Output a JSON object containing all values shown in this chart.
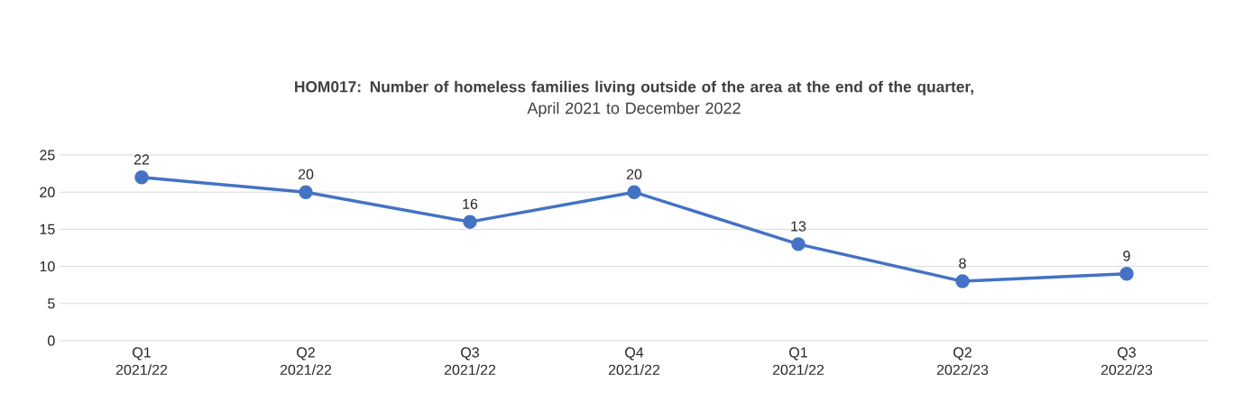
{
  "chart_data": {
    "type": "line",
    "title": "HOM017: Number of homeless families living outside of the area at the end of the quarter,",
    "subtitle": "April 2021 to December 2022",
    "categories": [
      "Q1 2021/22",
      "Q2 2021/22",
      "Q3 2021/22",
      "Q4 2021/22",
      "Q1 2021/22",
      "Q2 2022/23",
      "Q3 2022/23"
    ],
    "values": [
      22,
      20,
      16,
      20,
      13,
      8,
      9
    ],
    "color": "#4472c4",
    "ylim": [
      0,
      25
    ],
    "yticks": [
      0,
      5,
      10,
      15,
      20,
      25
    ],
    "grid": "y",
    "marker": "circle",
    "line_style": "solid",
    "data_labels": true
  }
}
